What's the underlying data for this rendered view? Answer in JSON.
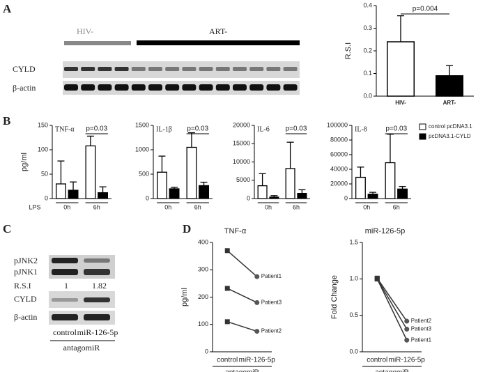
{
  "panel_labels": [
    "A",
    "B",
    "C",
    "D"
  ],
  "blot_a": {
    "groups": [
      "HIV-",
      "ART-"
    ],
    "rows": [
      "CYLD",
      "β-actin"
    ]
  },
  "blot_c": {
    "rows": [
      "pJNK2",
      "pJNK1",
      "CYLD",
      "β-actin"
    ],
    "rsi_label": "R.S.I",
    "rsi": [
      1,
      1.82
    ],
    "lanes": [
      "control",
      "miR-126-5p"
    ],
    "treatment": "antagomiR"
  },
  "lps_label": "LPS",
  "chart_data": [
    {
      "type": "bar",
      "categories": [
        "HIV-",
        "ART-"
      ],
      "values": [
        0.24,
        0.09
      ],
      "errors": [
        0.115,
        0.045
      ],
      "colors": [
        "#ffffff",
        "#000000"
      ],
      "y_label": "R.S.I",
      "ylim": [
        0,
        0.4
      ],
      "yticks": [
        {
          "value": 0,
          "label": "0.0"
        },
        0.1,
        0.2,
        0.3,
        0.4
      ],
      "annotation": "p=0.004"
    },
    {
      "type": "bar",
      "title": "TNF-α",
      "y_label": "pg/ml",
      "categories": [
        "0h",
        "6h"
      ],
      "series": [
        {
          "color": "#ffffff",
          "values": [
            30,
            108
          ],
          "errors": [
            47,
            20
          ]
        },
        {
          "color": "#000000",
          "values": [
            17,
            12
          ],
          "errors": [
            17,
            12
          ]
        }
      ],
      "ylim": [
        0,
        150
      ],
      "yticks": [
        0,
        50,
        100,
        150
      ],
      "annotation": "p=0.03"
    },
    {
      "type": "bar",
      "title": "IL-1β",
      "categories": [
        "0h",
        "6h"
      ],
      "series": [
        {
          "color": "#ffffff",
          "values": [
            540,
            1050
          ],
          "errors": [
            330,
            300
          ]
        },
        {
          "color": "#000000",
          "values": [
            200,
            265
          ],
          "errors": [
            30,
            70
          ]
        }
      ],
      "ylim": [
        0,
        1500
      ],
      "yticks": [
        0,
        500,
        1000,
        1500
      ],
      "annotation": "p=0.03"
    },
    {
      "type": "bar",
      "title": "IL-6",
      "categories": [
        "0h",
        "6h"
      ],
      "series": [
        {
          "color": "#ffffff",
          "values": [
            3500,
            8200
          ],
          "errors": [
            3300,
            7200
          ]
        },
        {
          "color": "#000000",
          "values": [
            400,
            1400
          ],
          "errors": [
            400,
            1000
          ]
        }
      ],
      "ylim": [
        0,
        20000
      ],
      "yticks": [
        0,
        5000,
        10000,
        15000,
        20000
      ],
      "annotation": "p=0.03"
    },
    {
      "type": "bar",
      "title": "IL-8",
      "categories": [
        "0h",
        "6h"
      ],
      "series": [
        {
          "name": "control pcDNA3.1",
          "color": "#ffffff",
          "values": [
            29000,
            49000
          ],
          "errors": [
            14000,
            39000
          ]
        },
        {
          "name": "pcDNA3.1-CYLD",
          "color": "#000000",
          "values": [
            6000,
            13000
          ],
          "errors": [
            2500,
            3500
          ]
        }
      ],
      "ylim": [
        0,
        100000
      ],
      "yticks": [
        0,
        20000,
        40000,
        60000,
        80000,
        100000
      ],
      "annotation": "p=0.03",
      "legend": "right"
    },
    {
      "type": "line",
      "title": "TNF-α",
      "y_label": "pg/ml",
      "x_label": "antagomiR",
      "categories": [
        "control",
        "miR-126-5p"
      ],
      "series": [
        {
          "name": "Patient1",
          "color": "#333333",
          "values": [
            370,
            275
          ]
        },
        {
          "name": "Patient3",
          "color": "#333333",
          "values": [
            232,
            180
          ]
        },
        {
          "name": "Patient2",
          "color": "#333333",
          "values": [
            110,
            75
          ]
        }
      ],
      "ylim": [
        0,
        400
      ],
      "yticks": [
        0,
        100,
        200,
        300,
        400
      ]
    },
    {
      "type": "line",
      "title": "miR-126-5p",
      "y_label": "Fold Change",
      "x_label": "antagomiR",
      "categories": [
        "control",
        "miR-126-5p"
      ],
      "series": [
        {
          "name": "Patient2",
          "color": "#333333",
          "values": [
            1.01,
            0.42
          ]
        },
        {
          "name": "Patient3",
          "color": "#333333",
          "values": [
            1.0,
            0.31
          ]
        },
        {
          "name": "Patient1",
          "color": "#333333",
          "values": [
            1.0,
            0.16
          ]
        }
      ],
      "ylim": [
        0,
        1.5
      ],
      "yticks": [
        {
          "value": 0,
          "label": "0.0"
        },
        0.5,
        {
          "value": 1,
          "label": "1.0"
        },
        1.5
      ]
    }
  ]
}
